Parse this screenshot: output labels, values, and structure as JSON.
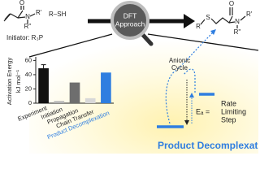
{
  "reaction": {
    "reactant_atoms": [
      "O",
      "N",
      "R'",
      "R''"
    ],
    "thiol": "R–SH",
    "initiator": "Initiator: R₃P",
    "method": [
      "DFT",
      "Approach"
    ],
    "product_atoms": [
      "S",
      "R",
      "O",
      "N",
      "R'",
      "R''"
    ]
  },
  "chart_data": {
    "type": "bar",
    "y_label": [
      "Activation Energy",
      "kJ mol⁻¹"
    ],
    "categories": [
      "Experiment",
      "Initiation",
      "Propagation",
      "Chain Transfer",
      "Product Decomplexation"
    ],
    "values": [
      49,
      3,
      29,
      7,
      43
    ],
    "errors": [
      5,
      null,
      null,
      null,
      null
    ],
    "colors": [
      "#111111",
      "#b5b5b5",
      "#6e6e6e",
      "#d8d8d8",
      "#2f7ee0"
    ],
    "label_colors": [
      "#222222",
      "#222222",
      "#222222",
      "#222222",
      "#2f7ee0"
    ],
    "ylim": [
      0,
      65
    ],
    "yticks": [
      0,
      20,
      40,
      60
    ]
  },
  "energy_diagram": {
    "cycle": [
      "Anionic",
      "Cycle"
    ],
    "barrier": "Eₐ =",
    "step": [
      "Rate",
      "Limiting",
      "Step"
    ],
    "highlight": "Product Decomplexation"
  }
}
